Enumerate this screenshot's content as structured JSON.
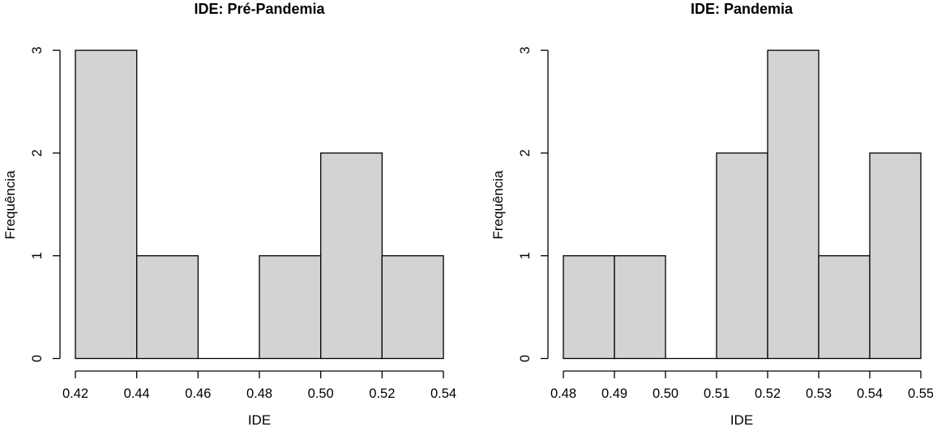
{
  "figure": {
    "background": "#ffffff",
    "text_color": "#000000"
  },
  "chart_data": [
    {
      "type": "bar",
      "subtype": "histogram",
      "title": "IDE: Pré-Pandemia",
      "xlabel": "IDE",
      "ylabel": "Frequência",
      "bin_edges": [
        0.42,
        0.44,
        0.46,
        0.48,
        0.5,
        0.52,
        0.54
      ],
      "counts": [
        3,
        1,
        0,
        1,
        2,
        1
      ],
      "xticks": [
        0.42,
        0.44,
        0.46,
        0.48,
        0.5,
        0.52,
        0.54
      ],
      "xtick_labels": [
        "0.42",
        "0.44",
        "0.46",
        "0.48",
        "0.50",
        "0.52",
        "0.54"
      ],
      "yticks": [
        0,
        1,
        2,
        3
      ],
      "ytick_labels": [
        "0",
        "1",
        "2",
        "3"
      ],
      "xlim": [
        0.42,
        0.54
      ],
      "ylim": [
        0,
        3
      ],
      "grid": false,
      "legend_position": "none",
      "bar_fill": "#d3d3d3",
      "bar_stroke": "#000000",
      "axis_color": "#000000"
    },
    {
      "type": "bar",
      "subtype": "histogram",
      "title": "IDE: Pandemia",
      "xlabel": "IDE",
      "ylabel": "Frequência",
      "bin_edges": [
        0.48,
        0.49,
        0.5,
        0.51,
        0.52,
        0.53,
        0.54,
        0.55
      ],
      "counts": [
        1,
        1,
        0,
        2,
        3,
        1,
        2
      ],
      "xticks": [
        0.48,
        0.49,
        0.5,
        0.51,
        0.52,
        0.53,
        0.54,
        0.55
      ],
      "xtick_labels": [
        "0.48",
        "0.49",
        "0.50",
        "0.51",
        "0.52",
        "0.53",
        "0.54",
        "0.55"
      ],
      "yticks": [
        0,
        1,
        2,
        3
      ],
      "ytick_labels": [
        "0",
        "1",
        "2",
        "3"
      ],
      "xlim": [
        0.48,
        0.55
      ],
      "ylim": [
        0,
        3
      ],
      "grid": false,
      "legend_position": "none",
      "bar_fill": "#d3d3d3",
      "bar_stroke": "#000000",
      "axis_color": "#000000"
    }
  ]
}
